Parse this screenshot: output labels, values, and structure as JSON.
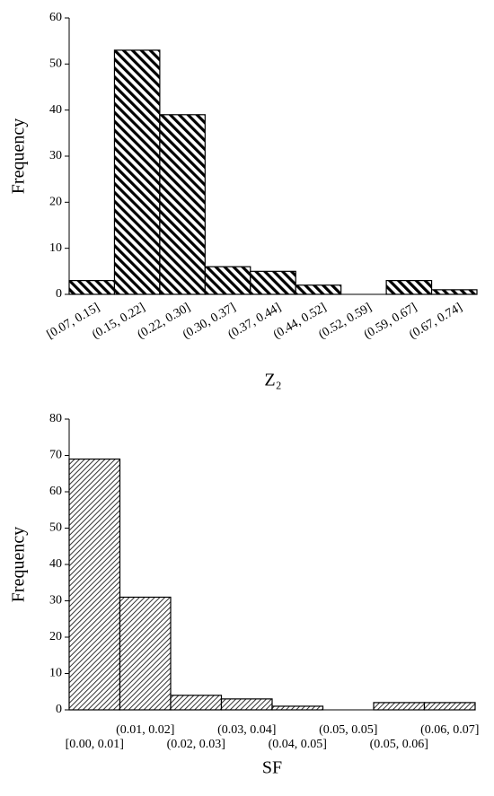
{
  "chart_data": [
    {
      "type": "bar",
      "x_label": "Z₂",
      "y_label": "Frequency",
      "categories": [
        "[0.07, 0.15]",
        "(0.15, 0.22]",
        "(0.22, 0.30]",
        "(0.30, 0.37]",
        "(0.37, 0.44]",
        "(0.44, 0.52]",
        "(0.52, 0.59]",
        "(0.59, 0.67]",
        "(0.67, 0.74]"
      ],
      "values": [
        3,
        53,
        39,
        6,
        5,
        2,
        0,
        3,
        1
      ],
      "color": "#000000",
      "ylim": [
        0,
        60
      ],
      "yticks": [
        0,
        10,
        20,
        30,
        40,
        50,
        60
      ]
    },
    {
      "type": "bar",
      "x_label": "SF",
      "y_label": "Frequency",
      "categories": [
        "[0.00, 0.01]",
        "(0.01, 0.02]",
        "(0.02, 0.03]",
        "(0.03, 0.04]",
        "(0.04, 0.05]",
        "(0.05, 0.05]",
        "(0.05, 0.06]",
        "(0.06, 0.07]"
      ],
      "values": [
        69,
        31,
        4,
        3,
        1,
        0,
        2,
        2
      ],
      "color": "#000000",
      "ylim": [
        0,
        80
      ],
      "yticks": [
        0,
        10,
        20,
        30,
        40,
        50,
        60,
        70,
        80
      ]
    }
  ]
}
